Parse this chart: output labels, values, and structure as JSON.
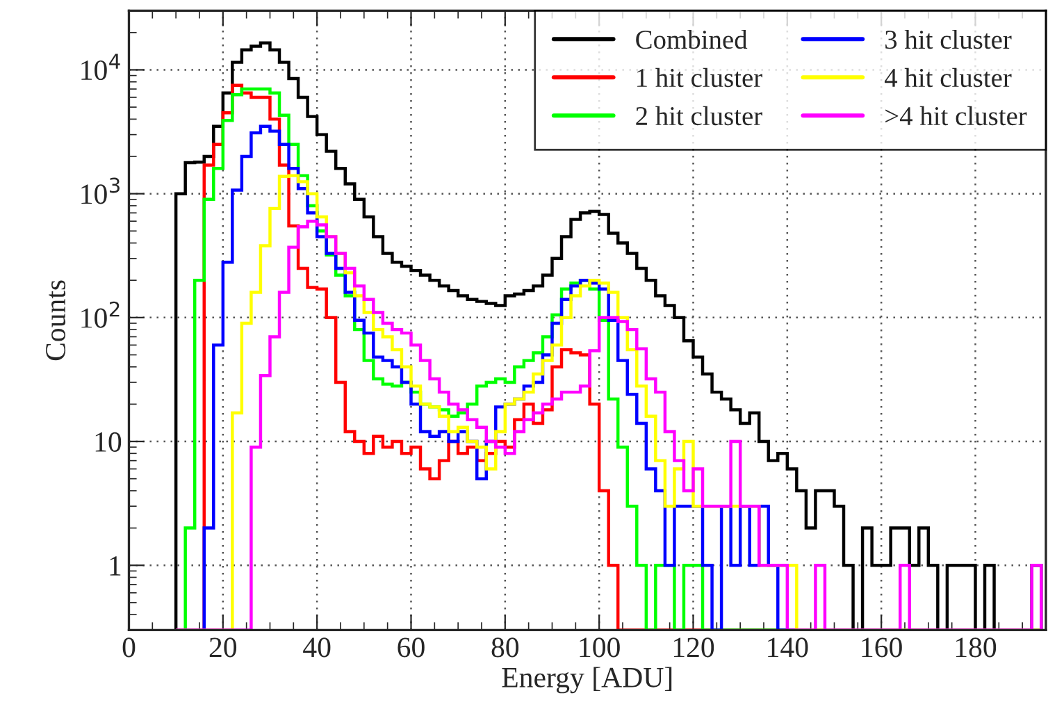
{
  "chart_data": {
    "type": "histogram",
    "xlabel": "Energy [ADU]",
    "ylabel": "Counts",
    "bins": [
      10,
      12,
      14,
      16,
      18,
      20,
      22,
      24,
      26,
      28,
      30,
      32,
      34,
      36,
      38,
      40,
      42,
      44,
      46,
      48,
      50,
      52,
      54,
      56,
      58,
      60,
      62,
      64,
      66,
      68,
      70,
      72,
      74,
      76,
      78,
      80,
      82,
      84,
      86,
      88,
      90,
      92,
      94,
      96,
      98,
      100,
      102,
      104,
      106,
      108,
      110,
      112,
      114,
      116,
      118,
      120,
      122,
      124,
      126,
      128,
      130,
      132,
      134,
      136,
      138,
      140,
      142,
      144,
      146,
      148,
      150,
      152,
      154,
      156,
      158,
      160,
      162,
      164,
      166,
      168,
      170,
      172,
      174,
      176,
      178,
      180,
      182,
      184,
      186,
      188,
      190,
      192,
      194
    ],
    "series": [
      {
        "name": "Combined",
        "color": "#000000",
        "values": [
          1000,
          1780,
          1800,
          2000,
          3500,
          6500,
          11500,
          14500,
          15500,
          16500,
          14500,
          11500,
          8500,
          6000,
          4200,
          3000,
          2200,
          1600,
          1200,
          900,
          650,
          450,
          330,
          280,
          260,
          240,
          220,
          200,
          180,
          165,
          150,
          140,
          135,
          130,
          125,
          150,
          155,
          165,
          180,
          220,
          300,
          450,
          620,
          700,
          720,
          680,
          480,
          400,
          330,
          250,
          200,
          150,
          125,
          100,
          65,
          48,
          35,
          25,
          22,
          18,
          14,
          17,
          10,
          7,
          8,
          6,
          4,
          2,
          4,
          4,
          3,
          1,
          null,
          2,
          1,
          1,
          2,
          2,
          1,
          2,
          1,
          null,
          1,
          1,
          1,
          null,
          1,
          null,
          null,
          null,
          null,
          1
        ]
      },
      {
        "name": "1 hit cluster",
        "color": "#ff0000",
        "values": [
          null,
          null,
          null,
          1700,
          2500,
          4500,
          7500,
          6500,
          6000,
          6000,
          4000,
          1700,
          550,
          250,
          175,
          170,
          100,
          30,
          12,
          10,
          8,
          11,
          9,
          10,
          8,
          9,
          6,
          5,
          7,
          10,
          8,
          9,
          7,
          8,
          10,
          9,
          15,
          20,
          14,
          18,
          40,
          55,
          52,
          50,
          20,
          4,
          1,
          null,
          null,
          null,
          null,
          null,
          null,
          null,
          null,
          null,
          null,
          null,
          null,
          null,
          null,
          null,
          null,
          null,
          null,
          null,
          null,
          null,
          null,
          null,
          null,
          null,
          null,
          null,
          null,
          null,
          null,
          null,
          null,
          null,
          null,
          null,
          null,
          null,
          null,
          null,
          null,
          null,
          null,
          null,
          null,
          null
        ]
      },
      {
        "name": "2 hit cluster",
        "color": "#00ff00",
        "values": [
          null,
          2,
          200,
          900,
          1600,
          3900,
          6300,
          7000,
          7000,
          7000,
          6500,
          4300,
          2500,
          1400,
          800,
          500,
          320,
          220,
          150,
          80,
          45,
          32,
          29,
          28,
          30,
          25,
          20,
          19,
          18,
          16,
          17,
          20,
          28,
          30,
          32,
          30,
          40,
          45,
          52,
          70,
          105,
          170,
          190,
          200,
          170,
          95,
          22,
          9,
          3,
          1,
          null,
          1,
          1,
          null,
          1,
          1,
          null,
          null,
          null,
          null,
          null,
          null,
          null,
          null,
          null,
          null,
          null,
          null,
          null,
          null,
          null,
          null,
          null,
          null,
          null,
          null,
          null,
          null,
          null,
          null,
          null,
          null,
          null,
          null,
          null,
          null,
          null,
          null,
          null,
          null,
          null,
          null
        ]
      },
      {
        "name": "3 hit cluster",
        "color": "#0000ff",
        "values": [
          null,
          null,
          null,
          2,
          60,
          280,
          1070,
          2000,
          3100,
          3500,
          3200,
          2500,
          1600,
          1100,
          700,
          450,
          330,
          250,
          160,
          95,
          75,
          48,
          45,
          40,
          30,
          20,
          12,
          11,
          12,
          10,
          12,
          10,
          5,
          10,
          19,
          20,
          22,
          28,
          30,
          50,
          90,
          140,
          180,
          200,
          190,
          170,
          95,
          45,
          24,
          14,
          6,
          4,
          1,
          3,
          3,
          3,
          1,
          null,
          3,
          1,
          3,
          1,
          3,
          1,
          null,
          null,
          null,
          null,
          null,
          null,
          null,
          null,
          null,
          null,
          null,
          null,
          null,
          null,
          null,
          null,
          null,
          null,
          null,
          null,
          null,
          null,
          null,
          null,
          null,
          null,
          null,
          null
        ]
      },
      {
        "name": "4 hit cluster",
        "color": "#ffff00",
        "values": [
          null,
          null,
          null,
          null,
          null,
          null,
          17,
          90,
          160,
          380,
          760,
          1380,
          1400,
          1250,
          1000,
          650,
          450,
          330,
          230,
          150,
          110,
          80,
          70,
          55,
          40,
          28,
          20,
          19,
          16,
          12,
          13,
          10,
          9,
          6,
          12,
          20,
          22,
          25,
          35,
          45,
          60,
          100,
          150,
          180,
          200,
          190,
          160,
          100,
          55,
          28,
          16,
          7,
          3,
          6,
          10,
          3,
          3,
          3,
          3,
          3,
          3,
          3,
          1,
          1,
          1,
          1,
          null,
          null,
          null,
          null,
          null,
          null,
          null,
          null,
          null,
          null,
          null,
          null,
          null,
          null,
          null,
          null,
          null,
          null,
          null,
          null,
          null,
          null,
          null,
          null,
          null,
          null
        ]
      },
      {
        "name": ">4 hit cluster",
        "color": "#ff00ff",
        "values": [
          null,
          null,
          null,
          null,
          null,
          null,
          null,
          null,
          9,
          34,
          70,
          160,
          370,
          540,
          600,
          560,
          450,
          330,
          250,
          180,
          140,
          110,
          90,
          80,
          75,
          60,
          45,
          32,
          25,
          20,
          18,
          15,
          13,
          10,
          9,
          8,
          12,
          15,
          17,
          20,
          22,
          25,
          25,
          28,
          54,
          100,
          100,
          93,
          80,
          56,
          32,
          25,
          12,
          7,
          4,
          6,
          3,
          3,
          3,
          10,
          3,
          3,
          1,
          1,
          1,
          null,
          null,
          null,
          1,
          null,
          null,
          null,
          null,
          null,
          null,
          null,
          null,
          1,
          null,
          null,
          null,
          null,
          null,
          null,
          null,
          null,
          null,
          null,
          null,
          null,
          null,
          1
        ]
      }
    ],
    "xlim": [
      0,
      195
    ],
    "xticks": [
      0,
      20,
      40,
      60,
      80,
      100,
      120,
      140,
      160,
      180
    ],
    "ylim": [
      0.3,
      30000
    ],
    "log": true,
    "yticks": [
      1,
      10,
      {
        "value": 100,
        "label": "10$^{2}$"
      },
      {
        "value": 1000,
        "label": "10$^{3}$"
      },
      {
        "value": 10000,
        "label": "10$^{4}$"
      }
    ],
    "grid": true,
    "legend": "top right"
  }
}
